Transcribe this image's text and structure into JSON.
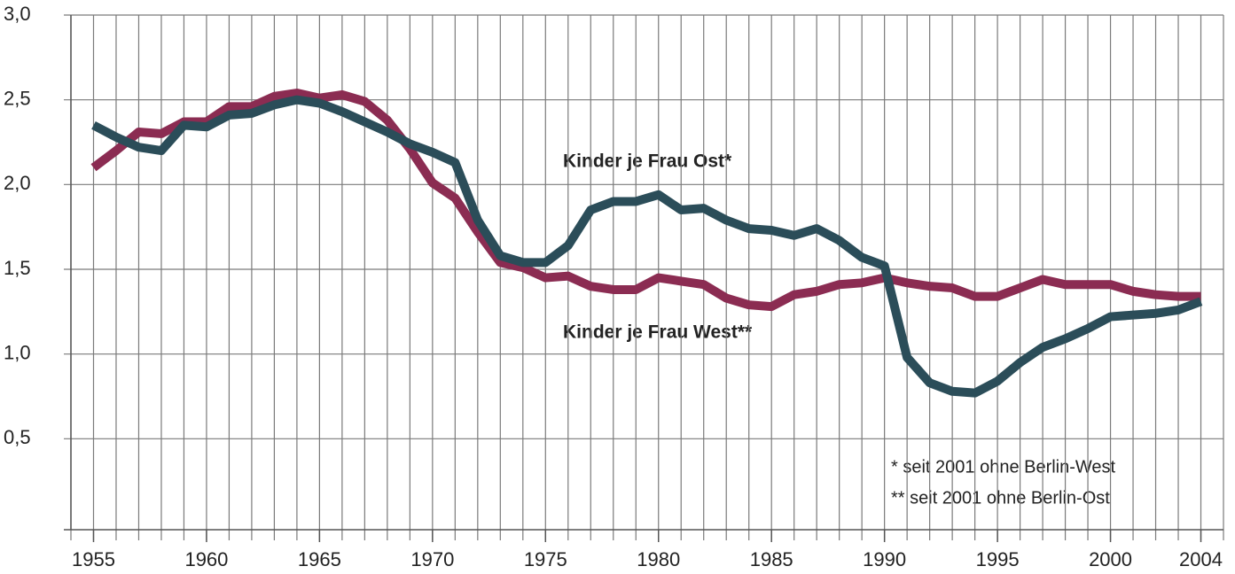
{
  "chart_data": {
    "type": "line",
    "x": [
      1955,
      1956,
      1957,
      1958,
      1959,
      1960,
      1961,
      1962,
      1963,
      1964,
      1965,
      1966,
      1967,
      1968,
      1969,
      1970,
      1971,
      1972,
      1973,
      1974,
      1975,
      1976,
      1977,
      1978,
      1979,
      1980,
      1981,
      1982,
      1983,
      1984,
      1985,
      1986,
      1987,
      1988,
      1989,
      1990,
      1991,
      1992,
      1993,
      1994,
      1995,
      1996,
      1997,
      1998,
      1999,
      2000,
      2001,
      2002,
      2003,
      2004
    ],
    "series": [
      {
        "name": "Kinder je Frau Ost*",
        "color": "#2b4d59",
        "values": [
          2.35,
          2.28,
          2.22,
          2.2,
          2.35,
          2.34,
          2.41,
          2.42,
          2.47,
          2.5,
          2.48,
          2.43,
          2.37,
          2.31,
          2.24,
          2.19,
          2.13,
          1.79,
          1.58,
          1.54,
          1.54,
          1.64,
          1.85,
          1.9,
          1.9,
          1.94,
          1.85,
          1.86,
          1.79,
          1.74,
          1.73,
          1.7,
          1.74,
          1.67,
          1.57,
          1.52,
          0.98,
          0.83,
          0.78,
          0.77,
          0.84,
          0.95,
          1.04,
          1.09,
          1.15,
          1.22,
          1.23,
          1.24,
          1.26,
          1.31
        ]
      },
      {
        "name": "Kinder je Frau West**",
        "color": "#8b2c52",
        "values": [
          2.1,
          2.2,
          2.31,
          2.3,
          2.37,
          2.37,
          2.46,
          2.46,
          2.52,
          2.54,
          2.51,
          2.53,
          2.49,
          2.38,
          2.21,
          2.01,
          1.92,
          1.72,
          1.54,
          1.51,
          1.45,
          1.46,
          1.4,
          1.38,
          1.38,
          1.45,
          1.43,
          1.41,
          1.33,
          1.29,
          1.28,
          1.35,
          1.37,
          1.41,
          1.42,
          1.45,
          1.42,
          1.4,
          1.39,
          1.34,
          1.34,
          1.39,
          1.44,
          1.41,
          1.41,
          1.41,
          1.37,
          1.35,
          1.34,
          1.34
        ]
      }
    ],
    "xlim": [
      1954,
      2005
    ],
    "xticks": [
      1955,
      1960,
      1965,
      1970,
      1975,
      1980,
      1985,
      1990,
      1995,
      2000,
      2004
    ],
    "ylim": [
      0,
      3
    ],
    "yticks": [
      {
        "value": 0.5,
        "label": "0,5"
      },
      {
        "value": 1,
        "label": "1,0"
      },
      {
        "value": 1.5,
        "label": "1,5"
      },
      {
        "value": 2,
        "label": "2,0"
      },
      {
        "value": 2.5,
        "label": "2,5"
      },
      {
        "value": 3,
        "label": "3,0"
      }
    ],
    "annotations": [
      "* seit 2001 ohne Berlin-West",
      "** seit 2001 ohne Berlin-Ost"
    ],
    "grid": true
  }
}
